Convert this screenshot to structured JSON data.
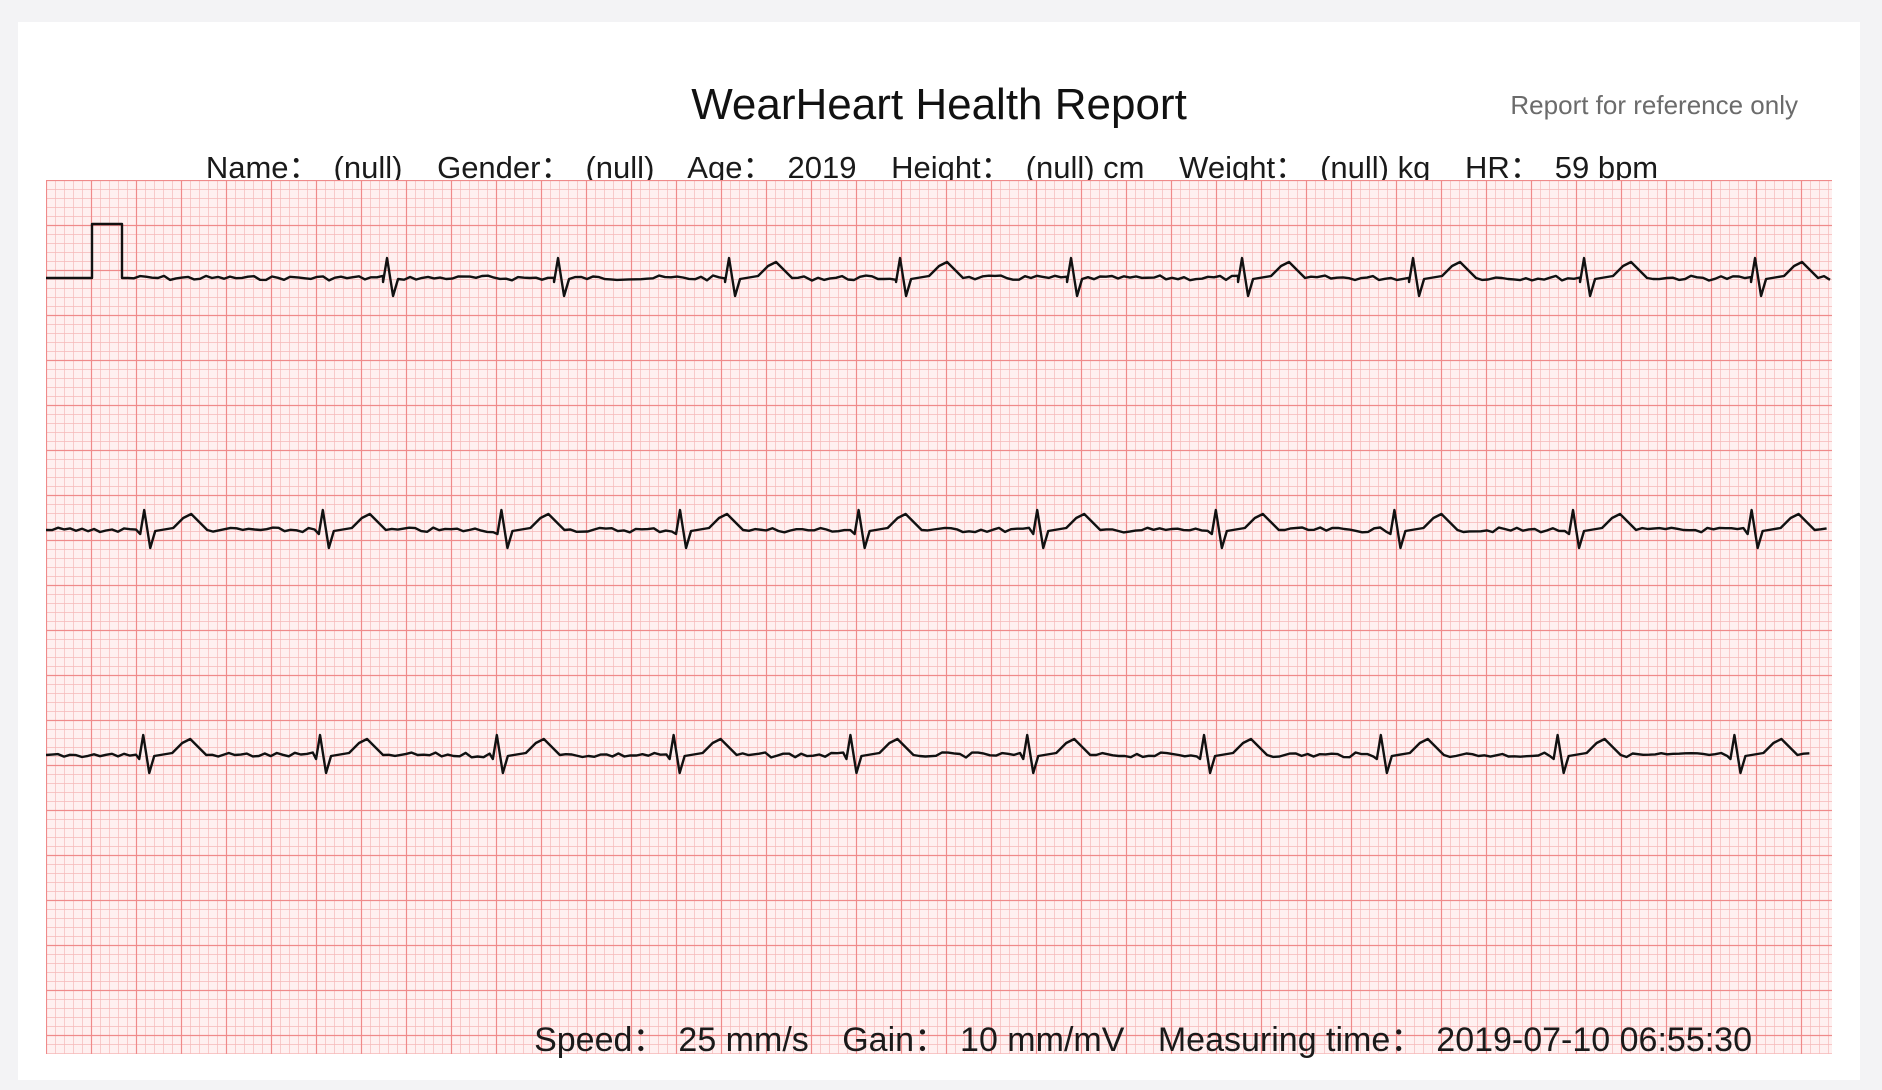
{
  "report": {
    "title": "WearHeart Health Report",
    "disclaimer": "Report for reference only"
  },
  "patient": {
    "name_label": "Name：",
    "name_value": "(null)",
    "gender_label": "Gender：",
    "gender_value": "(null)",
    "age_label": "Age：",
    "age_value": "2019",
    "height_label": "Height：",
    "height_value": "(null) cm",
    "weight_label": "Weight：",
    "weight_value": "(null) kg",
    "hr_label": "HR：",
    "hr_value": "59 bpm"
  },
  "recording": {
    "speed_label": "Speed：",
    "speed_value": "25 mm/s",
    "gain_label": "Gain：",
    "gain_value": "10 mm/mV",
    "time_label": "Measuring time：",
    "time_value": "2019-07-10 06:55:30"
  },
  "colors": {
    "grid_background": "#fff0f0",
    "grid_minor": "#f6b9b9",
    "grid_major": "#ef8a8a",
    "trace": "#111111"
  },
  "ecg": {
    "strips": 3,
    "calibration_pulse": true,
    "beat_pattern_strip1": [
      "flat",
      "qrs",
      "qrs",
      "qrs-t",
      "qrs-t",
      "qrs",
      "qrs-t",
      "qrs-t",
      "qrs-t",
      "qrs-t"
    ],
    "beat_pattern_strip2": [
      "qrs-t",
      "qrs-t",
      "qrs-t",
      "qrs-t",
      "qrs-t",
      "qrs-t",
      "qrs-t",
      "qrs-t",
      "qrs-t",
      "qrs-t"
    ],
    "beat_pattern_strip3": [
      "qrs-t",
      "qrs-t",
      "qrs-t",
      "qrs-t",
      "qrs-t",
      "qrs-t",
      "qrs-t",
      "qrs-t",
      "qrs-t",
      "qrs-t"
    ]
  }
}
